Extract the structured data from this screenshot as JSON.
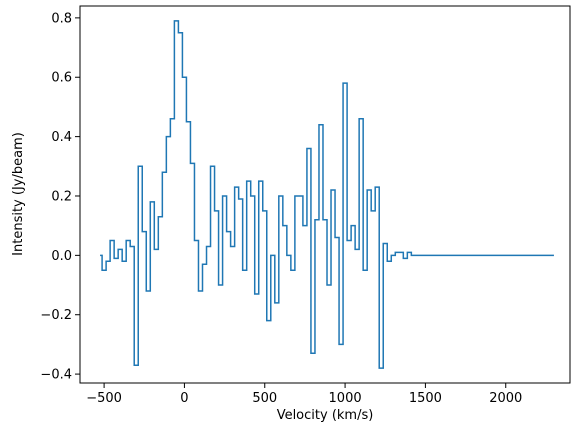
{
  "chart_data": {
    "type": "line",
    "drawstyle": "steps-mid",
    "title": "",
    "xlabel": "Velocity (km/s)",
    "ylabel": "Intensity (Jy/beam)",
    "xlim": [
      -650,
      2400
    ],
    "ylim": [
      -0.43,
      0.84
    ],
    "grid": false,
    "legend": "none",
    "line_color": "#1f77b4",
    "xticks": [
      -500,
      0,
      500,
      1000,
      1500,
      2000
    ],
    "xtick_labels": [
      "−500",
      "0",
      "500",
      "1000",
      "1500",
      "2000"
    ],
    "yticks": [
      -0.4,
      -0.2,
      0.0,
      0.2,
      0.4,
      0.6,
      0.8
    ],
    "ytick_labels": [
      "−0.4",
      "−0.2",
      "0.0",
      "0.2",
      "0.4",
      "0.6",
      "0.8"
    ],
    "series": [
      {
        "x": [
          -525,
          -500,
          -475,
          -450,
          -425,
          -400,
          -375,
          -350,
          -325,
          -300,
          -275,
          -250,
          -225,
          -200,
          -175,
          -150,
          -125,
          -100,
          -75,
          -50,
          -25,
          0,
          25,
          50,
          75,
          100,
          125,
          150,
          175,
          200,
          225,
          250,
          275,
          300,
          325,
          350,
          375,
          400,
          425,
          450,
          475,
          500,
          525,
          550,
          575,
          600,
          625,
          650,
          675,
          700,
          725,
          750,
          775,
          800,
          825,
          850,
          875,
          900,
          925,
          950,
          975,
          1000,
          1025,
          1050,
          1075,
          1100,
          1125,
          1150,
          1175,
          1200,
          1225,
          1250,
          1275,
          1300,
          1325,
          1350,
          1375,
          1400,
          1425,
          1450,
          1475,
          1500,
          1525,
          1550,
          1575,
          1600,
          1625,
          1650,
          1675,
          1700,
          1725,
          1750,
          1775,
          1800,
          1825,
          1850,
          1875,
          1900,
          1925,
          1950,
          1975,
          2000,
          2025,
          2050,
          2075,
          2100,
          2125,
          2150,
          2175,
          2200,
          2225,
          2250,
          2275,
          2300
        ],
        "y": [
          0.0,
          -0.05,
          -0.02,
          0.05,
          -0.01,
          0.02,
          -0.02,
          0.05,
          0.03,
          -0.37,
          0.3,
          0.08,
          -0.12,
          0.18,
          0.02,
          0.13,
          0.28,
          0.4,
          0.46,
          0.79,
          0.75,
          0.6,
          0.45,
          0.31,
          0.05,
          -0.12,
          -0.03,
          0.03,
          0.3,
          0.15,
          -0.1,
          0.2,
          0.08,
          0.03,
          0.23,
          0.19,
          -0.05,
          0.25,
          0.2,
          -0.13,
          0.25,
          0.15,
          -0.22,
          0.0,
          -0.16,
          0.2,
          0.1,
          0.0,
          -0.05,
          0.2,
          0.2,
          0.1,
          0.36,
          -0.33,
          0.12,
          0.44,
          0.12,
          -0.1,
          0.22,
          0.06,
          -0.3,
          0.58,
          0.05,
          0.1,
          0.02,
          0.46,
          -0.05,
          0.22,
          0.15,
          0.23,
          -0.38,
          0.04,
          -0.02,
          0.0,
          0.01,
          0.01,
          -0.01,
          0.01,
          0.0,
          0.0,
          0.0,
          0.0,
          0.0,
          0.0,
          0.0,
          0.0,
          0.0,
          0.0,
          0.0,
          0.0,
          0.0,
          0.0,
          0.0,
          0.0,
          0.0,
          0.0,
          0.0,
          0.0,
          0.0,
          0.0,
          0.0,
          0.0,
          0.0,
          0.0,
          0.0,
          0.0,
          0.0,
          0.0,
          0.0,
          0.0,
          0.0,
          0.0,
          0.0,
          0.0
        ]
      }
    ]
  }
}
